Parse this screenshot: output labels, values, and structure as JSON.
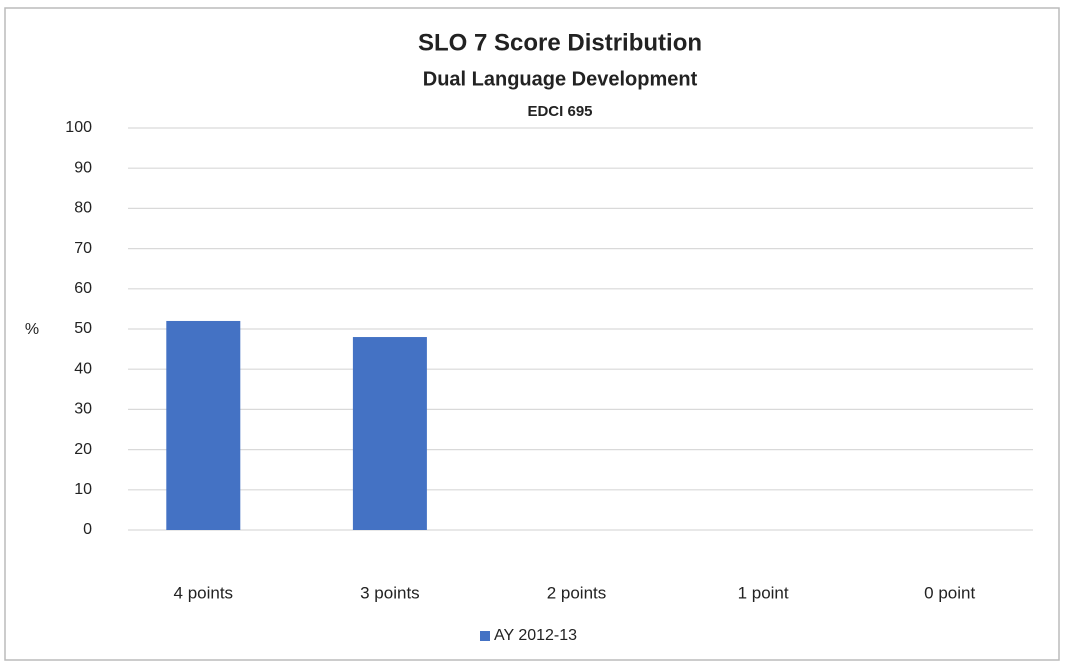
{
  "chart_data": {
    "type": "bar",
    "title": "SLO 7 Score Distribution",
    "subtitle": [
      "Dual Language Development",
      "EDCI 695"
    ],
    "y_label": "%",
    "categories": [
      "4 points",
      "3 points",
      "2 points",
      "1 point",
      "0 point"
    ],
    "series": [
      {
        "name": "AY 2012-13",
        "color": "#4472c4",
        "values": [
          52,
          48,
          0,
          0,
          0
        ]
      }
    ],
    "ylim": [
      0,
      100
    ],
    "yticks": [
      0,
      10,
      20,
      30,
      40,
      50,
      60,
      70,
      80,
      90,
      100
    ],
    "grid": true,
    "legend": "bottom"
  }
}
